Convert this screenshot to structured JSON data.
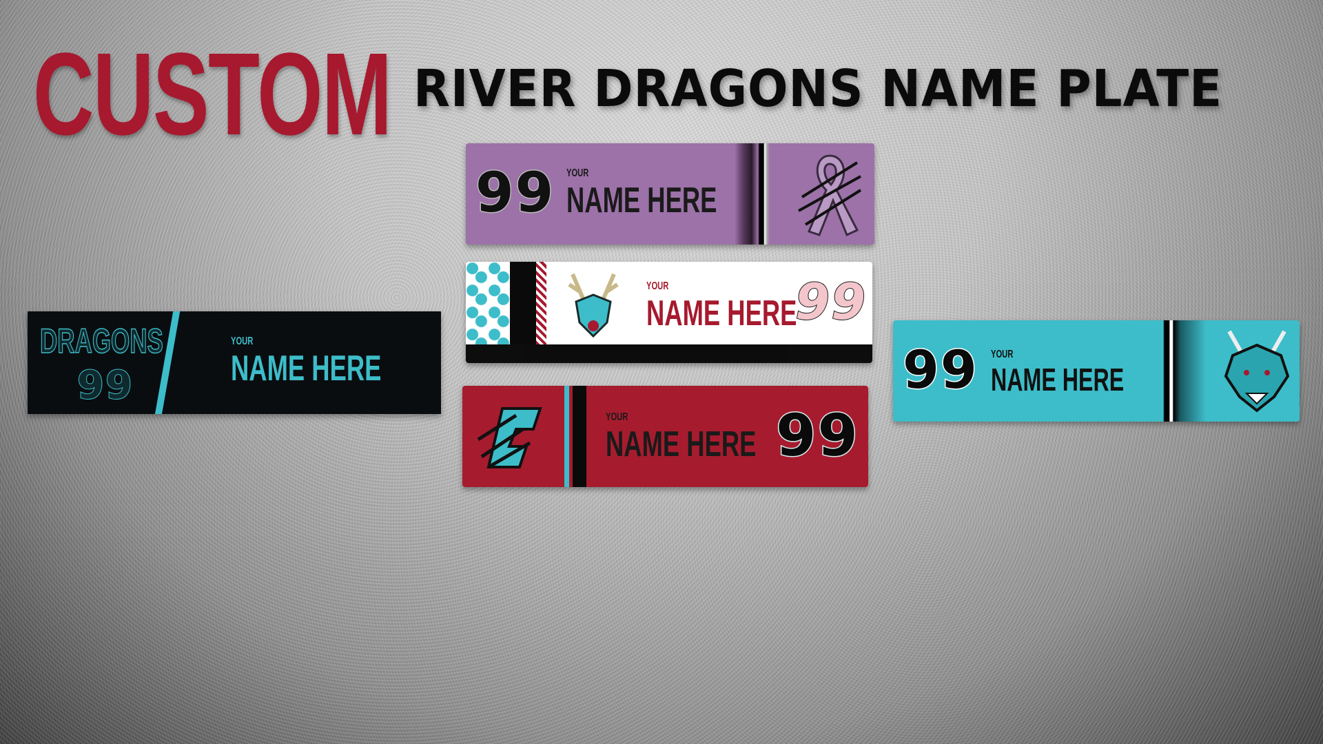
{
  "heading": {
    "custom": "CUSTOM",
    "title": "RIVER DRAGONS NAME PLATE"
  },
  "colors": {
    "red": "#a6192e",
    "teal": "#3dbdc9",
    "purple": "#9c72a8",
    "black": "#0a0d10"
  },
  "plates": [
    {
      "style": "purple-ribbon",
      "number": "99",
      "your": "YOUR",
      "name": "NAME  HERE",
      "logo": "ribbon-claw-icon"
    },
    {
      "style": "holiday-white",
      "number": "99",
      "your": "YOUR",
      "name": "NAME  HERE",
      "logo": "antlered-dragon-icon"
    },
    {
      "style": "red",
      "number": "99",
      "your": "YOUR",
      "name": "NAME  HERE",
      "logo": "claw-c-icon"
    },
    {
      "style": "black",
      "number": "99",
      "your": "YOUR",
      "name": "NAME  HERE",
      "wordmark": "DRAGONS"
    },
    {
      "style": "teal",
      "number": "99",
      "your": "YOUR",
      "name": "NAME  HERE",
      "logo": "dragon-head-icon"
    }
  ]
}
